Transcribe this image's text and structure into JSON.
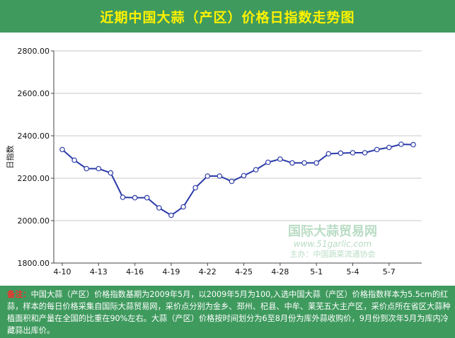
{
  "title": "近期中国大蒜（产区）价格日指数走势图",
  "colors": {
    "title_bar": "#3f9a5e",
    "title_text": "#fff200",
    "line": "#2b3aa8",
    "marker_fill": "#ffffff",
    "note_label": "#ff2a2a",
    "watermark": "#b9dcc4"
  },
  "watermark": {
    "brand": "国际大蒜贸易网",
    "url": "www.51garlic.com",
    "slogan": "主办：中国蔬菜流通协会"
  },
  "chart_data": {
    "type": "line",
    "title": "",
    "ylabel": "日指数",
    "xlabel": "",
    "ylim": [
      1800,
      2800
    ],
    "yticks": [
      "1800.00",
      "2000.00",
      "2200.00",
      "2400.00",
      "2600.00",
      "2800.00"
    ],
    "grid": "horizontal",
    "x_tick_labels": [
      "4-10",
      "4-13",
      "4-16",
      "4-19",
      "4-22",
      "4-25",
      "4-28",
      "5-1",
      "5-4",
      "5-7"
    ],
    "x": [
      "4-10",
      "4-11",
      "4-12",
      "4-13",
      "4-14",
      "4-15",
      "4-16",
      "4-17",
      "4-18",
      "4-19",
      "4-20",
      "4-21",
      "4-22",
      "4-23",
      "4-24",
      "4-25",
      "4-26",
      "4-27",
      "4-28",
      "4-29",
      "4-30",
      "5-1",
      "5-2",
      "5-3",
      "5-4",
      "5-5",
      "5-6",
      "5-7",
      "5-8",
      "5-9"
    ],
    "series": [
      {
        "values": [
          2335,
          2285,
          2245,
          2245,
          2225,
          2110,
          2108,
          2108,
          2060,
          2025,
          2065,
          2155,
          2210,
          2210,
          2185,
          2212,
          2240,
          2275,
          2290,
          2272,
          2272,
          2272,
          2315,
          2318,
          2320,
          2320,
          2335,
          2345,
          2360,
          2358
        ]
      }
    ]
  },
  "note": {
    "label": "备注：",
    "text": "中国大蒜（产区）价格指数基期为2009年5月，以2009年5月为100,入选中国大蒜（产区）价格指数样本为5.5cm的红蒜，样本的每日价格采集自国际大蒜贸易网，采价点分别为金乡、邳州、杞县、中牟、莱芜五大主产区，采价点所在省区大蒜种植面积和产量在全国的比重在90%左右。大蒜（产区）价格按时间划分为6至8月份为库外蒜收购价，9月份到次年5月为库内冷藏蒜出库价。"
  }
}
